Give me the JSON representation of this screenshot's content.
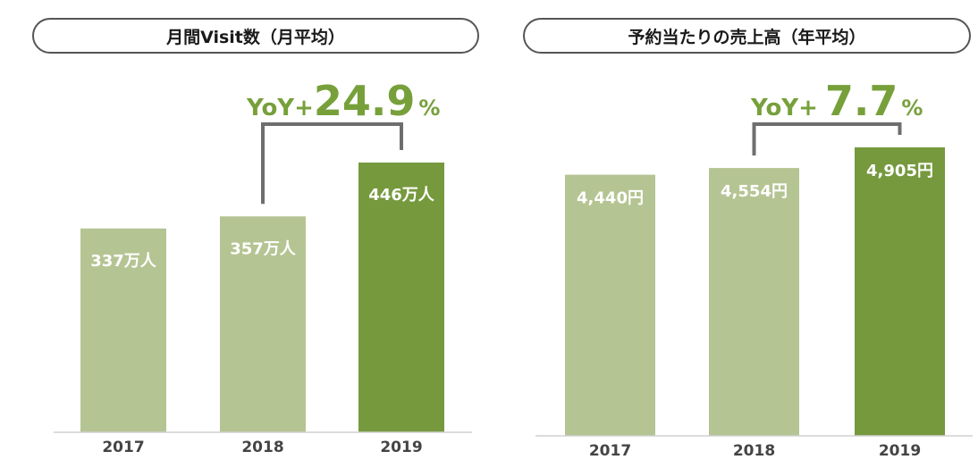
{
  "colors": {
    "bar_light": "#b5c493",
    "bar_dark": "#76993e",
    "accent_green": "#77a03b",
    "bracket": "#6e6e6e"
  },
  "chart_data": [
    {
      "type": "bar",
      "title": "月間Visit数（月平均）",
      "categories": [
        "2017",
        "2018",
        "2019"
      ],
      "values": [
        337,
        357,
        446
      ],
      "value_labels": [
        "337万人",
        "357万人",
        "446万人"
      ],
      "unit": "万人",
      "highlight_index": 2,
      "yoy": {
        "prefix": "YoY+",
        "value": "24.9",
        "suffix": "%"
      },
      "ylim": [
        0,
        446
      ]
    },
    {
      "type": "bar",
      "title": "予約当たりの売上高（年平均）",
      "categories": [
        "2017",
        "2018",
        "2019"
      ],
      "values": [
        4440,
        4554,
        4905
      ],
      "value_labels": [
        "4,440円",
        "4,554円",
        "4,905円"
      ],
      "unit": "円",
      "highlight_index": 2,
      "yoy": {
        "prefix": "YoY+",
        "value": "7.7",
        "suffix": "%"
      },
      "ylim": [
        0,
        4905
      ]
    }
  ]
}
